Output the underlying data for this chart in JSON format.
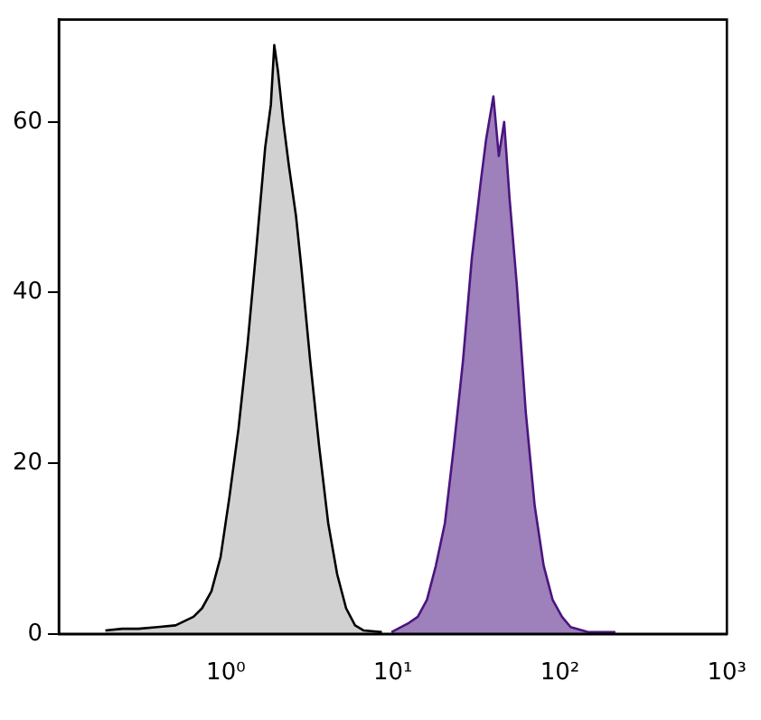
{
  "chart_data": {
    "type": "area",
    "log": "x",
    "grid": false,
    "legend": false,
    "xlim": [
      0.1,
      1000
    ],
    "xticks": [
      {
        "value": 1,
        "label": "10⁰"
      },
      {
        "value": 10,
        "label": "10¹"
      },
      {
        "value": 100,
        "label": "10²"
      },
      {
        "value": 1000,
        "label": "10³"
      }
    ],
    "ylim": [
      0,
      72
    ],
    "yticks": [
      0,
      20,
      40,
      60
    ],
    "series": [
      {
        "color": "#000000",
        "x": [
          0.19,
          0.24,
          0.3,
          0.39,
          0.5,
          0.64,
          0.72,
          0.82,
          0.93,
          1.05,
          1.19,
          1.35,
          1.52,
          1.72,
          1.86,
          1.95,
          2.05,
          2.21,
          2.38,
          2.63,
          2.83,
          3.2,
          3.62,
          4.1,
          4.64,
          5.25,
          5.94,
          6.7,
          8.6
        ],
        "values": [
          0.4,
          0.6,
          0.6,
          0.8,
          1,
          2,
          3,
          5,
          9,
          16,
          24,
          34,
          45,
          57,
          62,
          69,
          66,
          60,
          55,
          49,
          43,
          32,
          22,
          13,
          7,
          3,
          1,
          0.4,
          0.2
        ]
      },
      {
        "color": "#4b1580",
        "x": [
          9.8,
          12.5,
          14.1,
          16,
          18.1,
          20.5,
          23.2,
          26.3,
          29.7,
          33.6,
          36.2,
          40,
          43.1,
          46.4,
          50,
          55.2,
          62.5,
          70.7,
          80,
          90.5,
          103,
          116,
          149,
          215
        ],
        "values": [
          0.2,
          1.3,
          2,
          4,
          8,
          13,
          22,
          32,
          44,
          53,
          58,
          63,
          56,
          60,
          51,
          41,
          26,
          15,
          8,
          4,
          2,
          0.8,
          0.2,
          0.2
        ]
      }
    ]
  }
}
